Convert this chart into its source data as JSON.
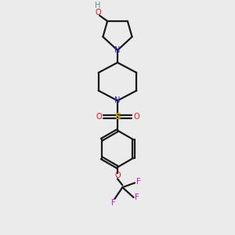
{
  "background_color": "#ebebeb",
  "bond_color": "#1a1a1a",
  "N_color": "#2020ee",
  "O_color": "#ee1010",
  "S_color": "#ccaa00",
  "F_color": "#ee00ee",
  "H_color": "#4a9a9a",
  "figsize": [
    3.0,
    3.0
  ],
  "dpi": 100,
  "xlim": [
    0,
    10
  ],
  "ylim": [
    0,
    10
  ]
}
